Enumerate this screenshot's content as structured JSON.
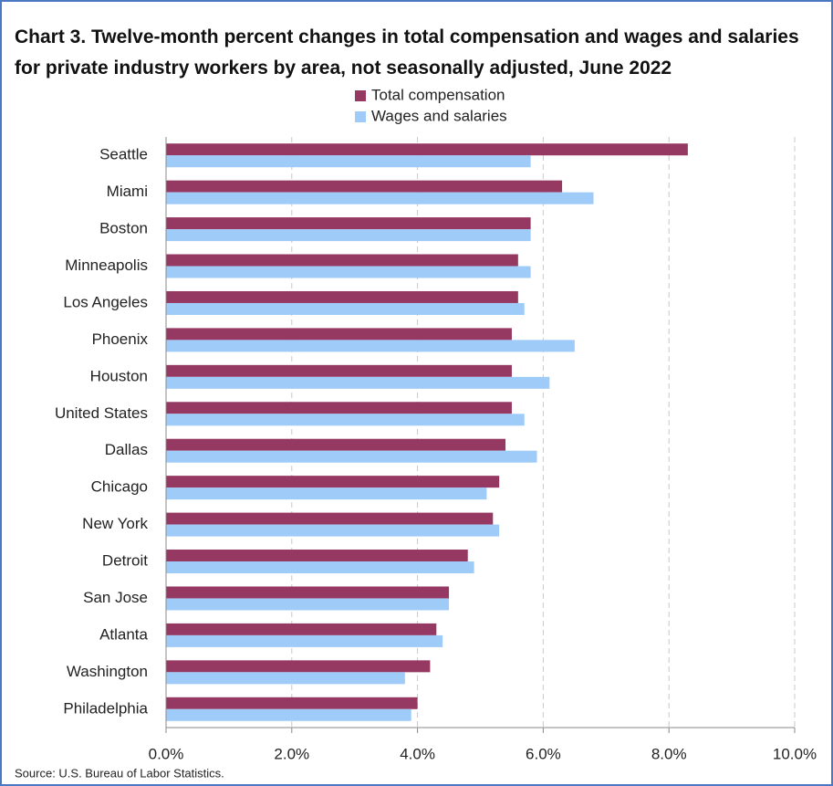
{
  "chart_data": {
    "type": "hbar",
    "title": "Chart 3. Twelve-month percent changes in total compensation and wages and salaries for private industry workers by area, not seasonally adjusted, June 2022",
    "categories": [
      "Seattle",
      "Miami",
      "Boston",
      "Minneapolis",
      "Los Angeles",
      "Phoenix",
      "Houston",
      "United States",
      "Dallas",
      "Chicago",
      "New York",
      "Detroit",
      "San Jose",
      "Atlanta",
      "Washington",
      "Philadelphia"
    ],
    "series": [
      {
        "name": "Total compensation",
        "color": "#953862",
        "values": [
          8.3,
          6.3,
          5.8,
          5.6,
          5.6,
          5.5,
          5.5,
          5.5,
          5.4,
          5.3,
          5.2,
          4.8,
          4.5,
          4.3,
          4.2,
          4.0
        ]
      },
      {
        "name": "Wages and salaries",
        "color": "#9fcbf9",
        "values": [
          5.8,
          6.8,
          5.8,
          5.8,
          5.7,
          6.5,
          6.1,
          5.7,
          5.9,
          5.1,
          5.3,
          4.9,
          4.5,
          4.4,
          3.8,
          3.9
        ]
      }
    ],
    "xlim": [
      0,
      10
    ],
    "xticks": [
      {
        "value": 0,
        "label": "0.0%"
      },
      {
        "value": 2,
        "label": "2.0%"
      },
      {
        "value": 4,
        "label": "4.0%"
      },
      {
        "value": 6,
        "label": "6.0%"
      },
      {
        "value": 8,
        "label": "8.0%"
      },
      {
        "value": 10,
        "label": "10.0%"
      }
    ],
    "grid": true,
    "source": "Source: U.S. Bureau of Labor Statistics."
  }
}
